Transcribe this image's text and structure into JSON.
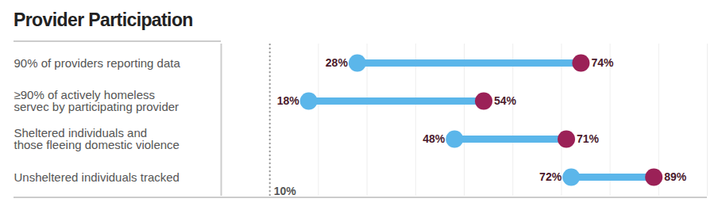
{
  "chart_data": {
    "type": "dumbbell",
    "title": "Provider Participation",
    "orientation": "horizontal",
    "categories": [
      "90% of providers reporting data",
      "≥90% of actively homeless\nservec by participating provider",
      "Sheltered individuals and\nthose fleeing domestic violence",
      "Unsheltered individuals tracked"
    ],
    "series": [
      {
        "color": "#5bb6ea",
        "values": [
          28,
          18,
          48,
          72
        ],
        "value_labels": [
          "28%",
          "18%",
          "48%",
          "72%"
        ]
      },
      {
        "color": "#9b2157",
        "values": [
          74,
          54,
          71,
          89
        ],
        "value_labels": [
          "74%",
          "54%",
          "71%",
          "89%"
        ]
      }
    ],
    "xlim": [
      0,
      100
    ],
    "xticks": [
      0,
      10,
      20,
      30,
      40,
      50,
      60,
      70,
      80,
      90,
      100
    ],
    "grid": true,
    "tick_labels": false,
    "data_labels": true,
    "annotations": [
      {
        "x": 10,
        "label": "10%",
        "line_style": "dotted"
      }
    ]
  }
}
